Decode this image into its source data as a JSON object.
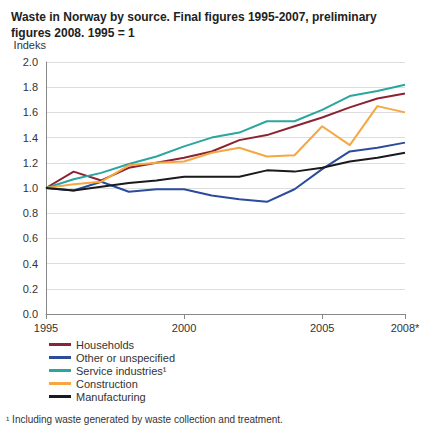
{
  "chart_data": {
    "type": "line",
    "title": "Waste in Norway by source. Final figures 1995-2007, preliminary figures 2008. 1995 = 1",
    "y_label": "Indeks",
    "footnote": "¹ Including waste generated by waste collection and treatment.",
    "categories": [
      "1995",
      null,
      null,
      null,
      null,
      "2000",
      null,
      null,
      null,
      null,
      "2005",
      null,
      null,
      "2008*"
    ],
    "series": [
      {
        "name": "Households",
        "color": "#8c2332",
        "values": [
          1.0,
          1.13,
          1.06,
          1.16,
          1.2,
          1.24,
          1.29,
          1.38,
          1.42,
          1.49,
          1.56,
          1.64,
          1.71,
          1.75
        ]
      },
      {
        "name": "Other or unspecified",
        "color": "#2b4b9b",
        "values": [
          1.0,
          0.98,
          1.05,
          0.97,
          0.99,
          0.99,
          0.94,
          0.91,
          0.89,
          0.99,
          1.15,
          1.29,
          1.32,
          1.36
        ]
      },
      {
        "name": "Service industries¹",
        "color": "#2aa5a0",
        "values": [
          1.0,
          1.07,
          1.12,
          1.19,
          1.25,
          1.33,
          1.4,
          1.44,
          1.53,
          1.53,
          1.62,
          1.73,
          1.77,
          1.82
        ]
      },
      {
        "name": "Construction",
        "color": "#f5a742",
        "values": [
          1.0,
          1.03,
          1.05,
          1.18,
          1.2,
          1.21,
          1.28,
          1.32,
          1.25,
          1.26,
          1.49,
          1.34,
          1.65,
          1.6
        ]
      },
      {
        "name": "Manufacturing",
        "color": "#1a1a1a",
        "values": [
          1.0,
          0.98,
          1.01,
          1.04,
          1.06,
          1.09,
          1.09,
          1.09,
          1.14,
          1.13,
          1.16,
          1.21,
          1.24,
          1.28
        ]
      }
    ],
    "ylim": [
      0,
      2
    ],
    "yticks": [
      {
        "value": 0,
        "label": "0.0"
      },
      0.2,
      0.4,
      0.6,
      0.8,
      {
        "value": 1,
        "label": "1.0"
      },
      1.2,
      1.4,
      1.6,
      1.8,
      {
        "value": 2,
        "label": "2.0"
      }
    ],
    "grid": true,
    "legend": "bottom-left"
  }
}
